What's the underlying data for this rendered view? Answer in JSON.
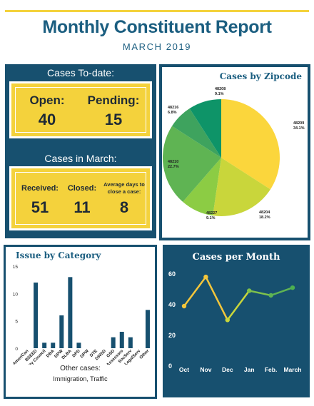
{
  "header": {
    "title": "Monthly Constituent Report",
    "subtitle": "MARCH 2019"
  },
  "cases_to_date": {
    "heading": "Cases To-date:",
    "open_label": "Open:",
    "open_value": "40",
    "pending_label": "Pending:",
    "pending_value": "15"
  },
  "cases_in_march": {
    "heading": "Cases in March:",
    "received_label": "Received:",
    "received_value": "51",
    "closed_label": "Closed:",
    "closed_value": "11",
    "avg_label_line1": "Average days to",
    "avg_label_line2": "close a case:",
    "avg_value": "8"
  },
  "other_cases": {
    "heading": "Other cases:",
    "value": "Immigration, Traffic"
  },
  "colors": {
    "navy": "#17506f",
    "yellow": "#f4d23c",
    "title_blue": "#1b5e80"
  },
  "chart_data": [
    {
      "type": "pie",
      "title": "Cases by Zipcode",
      "slices": [
        {
          "label": "48209",
          "percent": "34.1%",
          "value": 34.1,
          "color": "#fbd63c"
        },
        {
          "label": "48204",
          "percent": "18.2%",
          "value": 18.2,
          "color": "#c9d63b"
        },
        {
          "label": "48227",
          "percent": "9.1%",
          "value": 9.1,
          "color": "#8ccc44"
        },
        {
          "label": "48210",
          "percent": "22.7%",
          "value": 22.7,
          "color": "#5fb453"
        },
        {
          "label": "48216",
          "percent": "6.8%",
          "value": 6.8,
          "color": "#3ea35e"
        },
        {
          "label": "48208",
          "percent": "9.1%",
          "value": 9.1,
          "color": "#0e9468"
        }
      ]
    },
    {
      "type": "bar",
      "title": "Issue by Category",
      "categories": [
        "AmeriCan",
        "BSEED",
        "City Council",
        "DBA",
        "DPW",
        "DLBA",
        "DPD",
        "DPW",
        "DTE",
        "DWSD",
        "GSD",
        "Assessors",
        "SocServ",
        "LegalServ",
        "Other"
      ],
      "values": [
        0,
        12,
        1,
        1,
        6,
        13,
        1,
        0,
        0,
        0,
        2,
        3,
        2,
        0,
        7
      ],
      "yticks": [
        "0",
        "5",
        "10",
        "15"
      ],
      "ylim": [
        0,
        15
      ],
      "bar_color": "#17506f"
    },
    {
      "type": "line",
      "title": "Cases per Month",
      "categories": [
        "Oct",
        "Nov",
        "Dec",
        "Jan",
        "Feb.",
        "March"
      ],
      "values": [
        39,
        58,
        30,
        49,
        46,
        51
      ],
      "yticks": [
        "0",
        "20",
        "40",
        "60"
      ],
      "ylim": [
        0,
        65
      ]
    }
  ]
}
